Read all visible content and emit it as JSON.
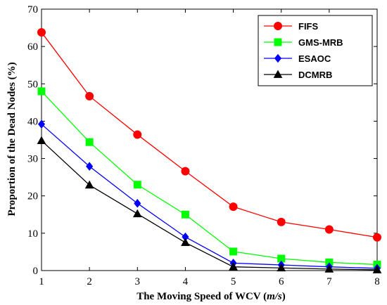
{
  "chart_data": {
    "type": "line",
    "x": [
      1,
      2,
      3,
      4,
      5,
      6,
      7,
      8
    ],
    "xlim": [
      1,
      8
    ],
    "ylim": [
      0,
      70
    ],
    "xticks": [
      "1",
      "2",
      "3",
      "4",
      "5",
      "6",
      "7",
      "8"
    ],
    "yticks": [
      "0",
      "10",
      "20",
      "30",
      "40",
      "50",
      "60",
      "70"
    ],
    "xlabel_main": "The Moving Speed of WCV (",
    "xlabel_unit": "m/s",
    "xlabel_close": ")",
    "ylabel": "Proportion of the Dead Nodes (%)",
    "grid": false,
    "legend_position": "top-right",
    "series": [
      {
        "name": "FIFS",
        "color": "#ff0000",
        "marker": "circle",
        "values": [
          63.8,
          46.7,
          36.4,
          26.6,
          17.1,
          13.0,
          11.0,
          8.9
        ]
      },
      {
        "name": "GMS-MRB",
        "color": "#00ff00",
        "marker": "square",
        "values": [
          48.0,
          34.4,
          23.0,
          15.0,
          5.1,
          3.2,
          2.2,
          1.6
        ]
      },
      {
        "name": "ESAOC",
        "color": "#0000ff",
        "marker": "diamond",
        "values": [
          39.2,
          27.9,
          18.0,
          9.0,
          2.0,
          1.5,
          1.0,
          0.6
        ]
      },
      {
        "name": "DCMRB",
        "color": "#000000",
        "marker": "triangle",
        "values": [
          34.8,
          22.9,
          15.2,
          7.5,
          1.0,
          0.7,
          0.4,
          0.2
        ]
      }
    ]
  }
}
